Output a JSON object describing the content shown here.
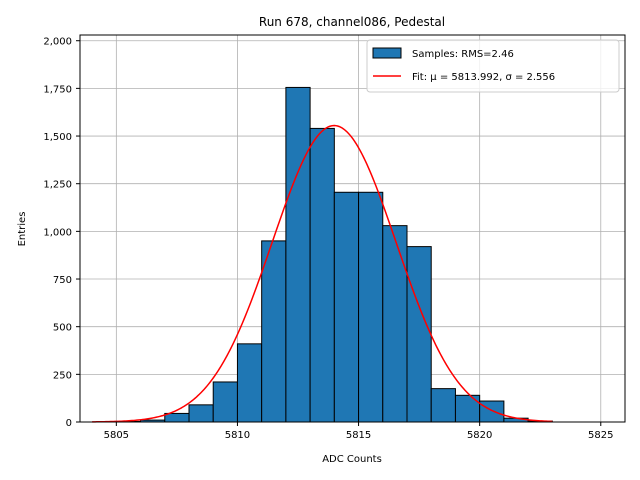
{
  "chart_data": {
    "type": "bar",
    "title": "Run 678, channel086, Pedestal",
    "xlabel": "ADC Counts",
    "ylabel": "Entries",
    "xlim": [
      5803.5,
      5826.0
    ],
    "ylim": [
      0,
      2030
    ],
    "xticks": [
      5805,
      5810,
      5815,
      5820,
      5825
    ],
    "yticks": [
      0,
      250,
      500,
      750,
      1000,
      1250,
      1500,
      1750,
      2000
    ],
    "grid": true,
    "legend_position": "top-right",
    "histogram": {
      "name": "Samples: RMS=2.46",
      "color": "#1f77b4",
      "edge_color": "#000000",
      "bin_edges": [
        5804,
        5805,
        5806,
        5807,
        5808,
        5809,
        5810,
        5811,
        5812,
        5813,
        5814,
        5815,
        5816,
        5817,
        5818,
        5819,
        5820,
        5821,
        5822,
        5823
      ],
      "values": [
        0,
        3,
        10,
        45,
        90,
        210,
        410,
        950,
        1755,
        1540,
        1205,
        1205,
        1030,
        920,
        175,
        140,
        110,
        20,
        5
      ]
    },
    "fit": {
      "name": "Fit: μ = 5813.992, σ = 2.556",
      "color": "#ff0000",
      "mu": 5813.992,
      "sigma": 2.556,
      "amplitude": 1555,
      "x_range": [
        5804,
        5823
      ]
    }
  }
}
